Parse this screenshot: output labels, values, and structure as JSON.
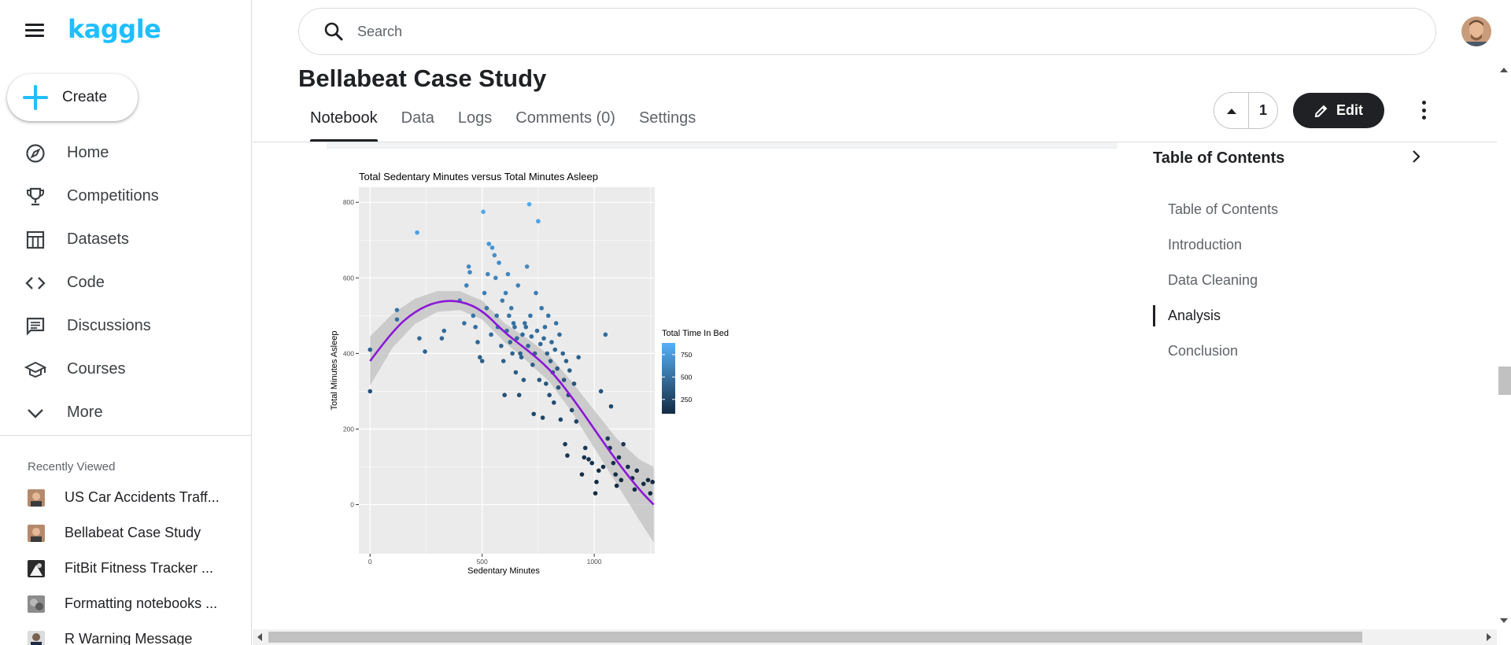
{
  "app": {
    "logo": "kaggle"
  },
  "sidebar": {
    "create_label": "Create",
    "items": [
      {
        "label": "Home",
        "icon": "compass-icon"
      },
      {
        "label": "Competitions",
        "icon": "trophy-icon"
      },
      {
        "label": "Datasets",
        "icon": "table-icon"
      },
      {
        "label": "Code",
        "icon": "code-icon"
      },
      {
        "label": "Discussions",
        "icon": "chat-icon"
      },
      {
        "label": "Courses",
        "icon": "school-icon"
      },
      {
        "label": "More",
        "icon": "chevron-down-icon"
      }
    ],
    "recent_title": "Recently Viewed",
    "recent": [
      {
        "label": "US Car Accidents Traff..."
      },
      {
        "label": "Bellabeat Case Study"
      },
      {
        "label": "FitBit Fitness Tracker ..."
      },
      {
        "label": "Formatting notebooks ..."
      },
      {
        "label": "R Warning Message"
      }
    ]
  },
  "search": {
    "placeholder": "Search"
  },
  "notebook": {
    "title": "Bellabeat Case Study",
    "tabs": [
      {
        "label": "Notebook",
        "active": true
      },
      {
        "label": "Data"
      },
      {
        "label": "Logs"
      },
      {
        "label": "Comments (0)"
      },
      {
        "label": "Settings"
      }
    ],
    "vote_count": "1",
    "edit_label": "Edit"
  },
  "toc": {
    "title": "Table of Contents",
    "items": [
      {
        "label": "Table of Contents"
      },
      {
        "label": "Introduction"
      },
      {
        "label": "Data Cleaning"
      },
      {
        "label": "Analysis",
        "active": true
      },
      {
        "label": "Conclusion"
      }
    ]
  },
  "chart_data": {
    "type": "scatter",
    "title": "Total Sedentary Minutes versus Total Minutes Asleep",
    "xlabel": "Sedentary Minutes",
    "ylabel": "Total Minutes Asleep",
    "xlim": [
      -50,
      1270
    ],
    "ylim": [
      -130,
      840
    ],
    "x_ticks": [
      0,
      500,
      1000
    ],
    "y_ticks": [
      0,
      200,
      400,
      600,
      800
    ],
    "grid": true,
    "legend_title": "Total Time In Bed",
    "legend_ticks": [
      250,
      500,
      750
    ],
    "color_range": [
      90,
      880
    ],
    "colors": {
      "low": "#132b43",
      "high": "#56b1f7",
      "smooth": "#8a18d6",
      "ribbon": "#bdbdbd",
      "panel": "#ebebeb"
    },
    "points": [
      [
        0,
        300,
        310
      ],
      [
        0,
        410,
        420
      ],
      [
        120,
        490,
        505
      ],
      [
        120,
        515,
        525
      ],
      [
        210,
        720,
        780
      ],
      [
        220,
        440,
        455
      ],
      [
        245,
        405,
        420
      ],
      [
        330,
        460,
        470
      ],
      [
        320,
        440,
        455
      ],
      [
        400,
        540,
        560
      ],
      [
        420,
        480,
        500
      ],
      [
        430,
        580,
        600
      ],
      [
        440,
        630,
        650
      ],
      [
        445,
        615,
        640
      ],
      [
        460,
        500,
        525
      ],
      [
        470,
        470,
        485
      ],
      [
        480,
        430,
        445
      ],
      [
        490,
        390,
        400
      ],
      [
        500,
        380,
        395
      ],
      [
        505,
        775,
        830
      ],
      [
        510,
        560,
        580
      ],
      [
        520,
        520,
        545
      ],
      [
        525,
        610,
        640
      ],
      [
        530,
        690,
        720
      ],
      [
        540,
        450,
        470
      ],
      [
        545,
        680,
        705
      ],
      [
        555,
        660,
        690
      ],
      [
        560,
        600,
        625
      ],
      [
        565,
        500,
        520
      ],
      [
        570,
        470,
        490
      ],
      [
        575,
        640,
        660
      ],
      [
        585,
        420,
        440
      ],
      [
        590,
        540,
        560
      ],
      [
        595,
        380,
        400
      ],
      [
        600,
        290,
        315
      ],
      [
        605,
        560,
        585
      ],
      [
        610,
        460,
        480
      ],
      [
        615,
        610,
        635
      ],
      [
        620,
        500,
        520
      ],
      [
        625,
        430,
        450
      ],
      [
        630,
        520,
        545
      ],
      [
        635,
        400,
        425
      ],
      [
        640,
        480,
        500
      ],
      [
        645,
        470,
        490
      ],
      [
        650,
        350,
        375
      ],
      [
        655,
        440,
        460
      ],
      [
        660,
        580,
        600
      ],
      [
        665,
        290,
        310
      ],
      [
        670,
        400,
        420
      ],
      [
        675,
        390,
        410
      ],
      [
        680,
        450,
        470
      ],
      [
        685,
        330,
        355
      ],
      [
        690,
        480,
        500
      ],
      [
        695,
        470,
        490
      ],
      [
        700,
        630,
        655
      ],
      [
        705,
        420,
        440
      ],
      [
        710,
        795,
        850
      ],
      [
        715,
        500,
        520
      ],
      [
        720,
        445,
        465
      ],
      [
        725,
        370,
        390
      ],
      [
        730,
        240,
        260
      ],
      [
        735,
        400,
        420
      ],
      [
        740,
        560,
        580
      ],
      [
        745,
        460,
        480
      ],
      [
        750,
        750,
        800
      ],
      [
        755,
        330,
        350
      ],
      [
        760,
        425,
        445
      ],
      [
        765,
        520,
        540
      ],
      [
        770,
        230,
        250
      ],
      [
        775,
        440,
        460
      ],
      [
        780,
        470,
        490
      ],
      [
        785,
        320,
        340
      ],
      [
        790,
        400,
        420
      ],
      [
        795,
        500,
        520
      ],
      [
        800,
        290,
        315
      ],
      [
        805,
        380,
        400
      ],
      [
        810,
        430,
        450
      ],
      [
        815,
        350,
        370
      ],
      [
        820,
        270,
        290
      ],
      [
        825,
        410,
        430
      ],
      [
        830,
        480,
        500
      ],
      [
        835,
        360,
        380
      ],
      [
        840,
        310,
        330
      ],
      [
        845,
        450,
        470
      ],
      [
        850,
        225,
        245
      ],
      [
        860,
        400,
        420
      ],
      [
        865,
        330,
        350
      ],
      [
        870,
        160,
        175
      ],
      [
        875,
        380,
        400
      ],
      [
        880,
        130,
        150
      ],
      [
        885,
        290,
        310
      ],
      [
        890,
        355,
        375
      ],
      [
        900,
        250,
        270
      ],
      [
        910,
        320,
        340
      ],
      [
        920,
        220,
        240
      ],
      [
        930,
        390,
        405
      ],
      [
        945,
        80,
        100
      ],
      [
        960,
        150,
        165
      ],
      [
        975,
        120,
        135
      ],
      [
        990,
        110,
        120
      ],
      [
        1010,
        60,
        75
      ],
      [
        1020,
        90,
        105
      ],
      [
        1030,
        300,
        320
      ],
      [
        1040,
        100,
        110
      ],
      [
        1050,
        450,
        470
      ],
      [
        1060,
        175,
        190
      ],
      [
        1075,
        260,
        280
      ],
      [
        1085,
        110,
        125
      ],
      [
        1095,
        80,
        95
      ],
      [
        1110,
        125,
        140
      ],
      [
        1120,
        65,
        75
      ],
      [
        1130,
        160,
        175
      ],
      [
        1150,
        100,
        110
      ],
      [
        1170,
        70,
        80
      ],
      [
        1190,
        90,
        105
      ],
      [
        1220,
        55,
        65
      ],
      [
        1240,
        65,
        75
      ],
      [
        1260,
        60,
        70
      ],
      [
        1250,
        30,
        40
      ],
      [
        1180,
        40,
        50
      ],
      [
        1100,
        50,
        60
      ],
      [
        1005,
        30,
        45
      ],
      [
        1070,
        150,
        165
      ],
      [
        955,
        125,
        140
      ]
    ],
    "smooth": [
      [
        0,
        380
      ],
      [
        100,
        460
      ],
      [
        200,
        512
      ],
      [
        300,
        538
      ],
      [
        400,
        540
      ],
      [
        500,
        515
      ],
      [
        600,
        455
      ],
      [
        700,
        410
      ],
      [
        800,
        360
      ],
      [
        900,
        285
      ],
      [
        1000,
        200
      ],
      [
        1100,
        115
      ],
      [
        1200,
        40
      ],
      [
        1265,
        0
      ]
    ],
    "ribbon_upper": [
      [
        0,
        445
      ],
      [
        100,
        505
      ],
      [
        200,
        545
      ],
      [
        300,
        565
      ],
      [
        400,
        565
      ],
      [
        500,
        540
      ],
      [
        600,
        480
      ],
      [
        700,
        440
      ],
      [
        800,
        395
      ],
      [
        900,
        325
      ],
      [
        1000,
        250
      ],
      [
        1100,
        175
      ],
      [
        1200,
        120
      ],
      [
        1265,
        100
      ]
    ],
    "ribbon_lower": [
      [
        0,
        315
      ],
      [
        100,
        415
      ],
      [
        200,
        478
      ],
      [
        300,
        510
      ],
      [
        400,
        515
      ],
      [
        500,
        490
      ],
      [
        600,
        430
      ],
      [
        700,
        380
      ],
      [
        800,
        325
      ],
      [
        900,
        245
      ],
      [
        1000,
        150
      ],
      [
        1100,
        55
      ],
      [
        1200,
        -40
      ],
      [
        1265,
        -100
      ]
    ]
  }
}
